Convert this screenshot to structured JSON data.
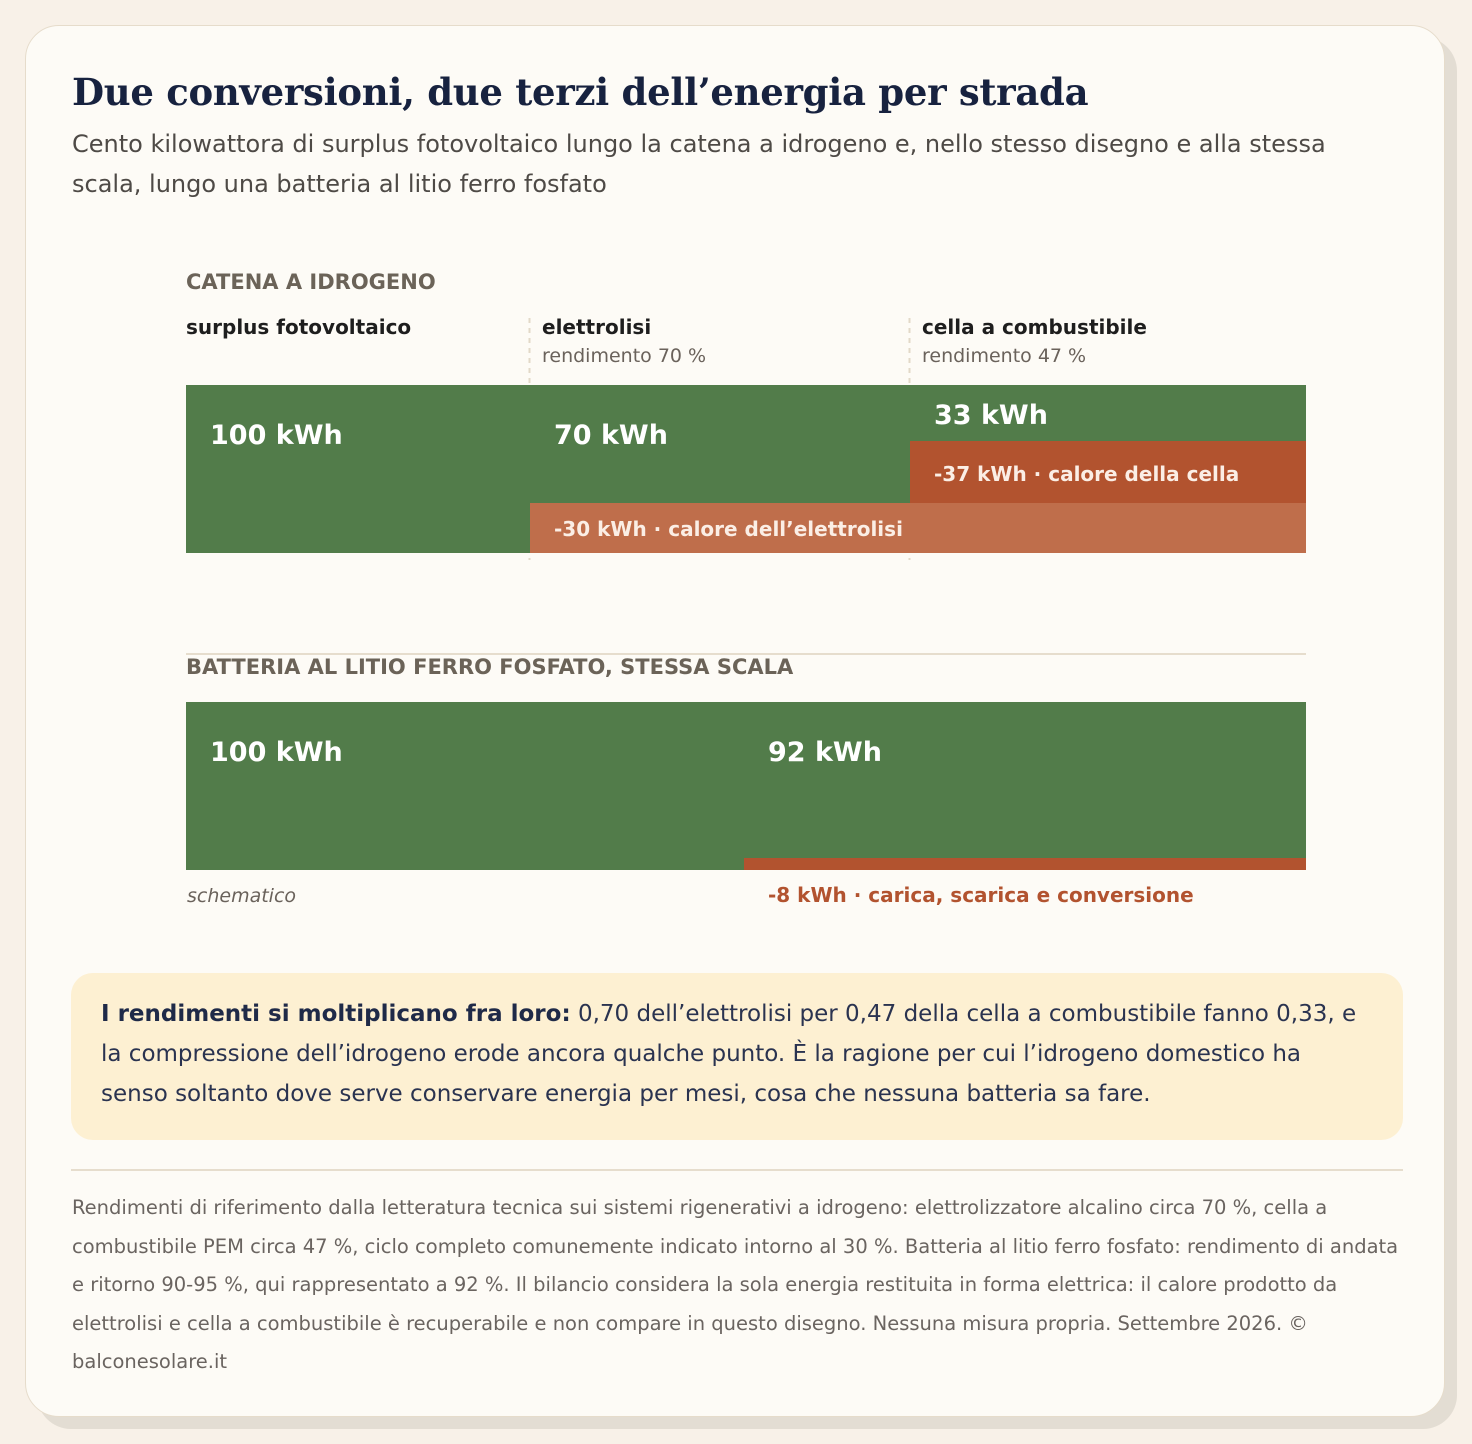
{
  "header": {
    "title": "Due conversioni, due terzi dell’energia per strada",
    "subtitle": "Cento kilowattora di surplus fotovoltaico lungo la catena a idrogeno e, nello stesso disegno e alla stessa scala, lungo una batteria al litio ferro fosfato"
  },
  "chart_data": {
    "type": "bar",
    "colors": {
      "energy": "#527c4a",
      "loss_electrolysis": "#bf6e4b",
      "loss_cell": "#b2532f",
      "loss_battery": "#b2532f"
    },
    "sections": [
      {
        "title": "CATENA A IDROGENO",
        "stages": [
          {
            "name": "surplus fotovoltaico",
            "note": "",
            "value": 100,
            "label": "100 kWh"
          },
          {
            "name": "elettrolisi",
            "note": "rendimento 70 %",
            "value": 70,
            "label": "70 kWh",
            "loss": 30,
            "loss_label": "-30 kWh · calore dell’elettrolisi"
          },
          {
            "name": "cella a combustibile",
            "note": "rendimento 47 %",
            "value": 33,
            "label": "33 kWh",
            "loss": 37,
            "loss_label": "-37 kWh · calore della cella"
          }
        ]
      },
      {
        "title": "BATTERIA AL LITIO FERRO FOSFATO, STESSA SCALA",
        "stages": [
          {
            "name": "",
            "note": "",
            "value": 100,
            "label": "100 kWh"
          },
          {
            "name": "",
            "note": "",
            "value": 92,
            "label": "92 kWh",
            "loss": 8,
            "loss_label": "-8 kWh · carica, scarica e conversione"
          }
        ]
      }
    ],
    "scale_note": "schematico",
    "unit": "kWh"
  },
  "callout": {
    "lead": "I rendimenti si moltiplicano fra loro:",
    "text": " 0,70 dell’elettrolisi per 0,47 della cella a combustibile fanno 0,33, e la compressione dell’idrogeno erode ancora qualche punto. È la ragione per cui l’idrogeno domestico ha senso soltanto dove serve conservare energia per mesi, cosa che nessuna batteria sa fare."
  },
  "footnote": "Rendimenti di riferimento dalla letteratura tecnica sui sistemi rigenerativi a idrogeno: elettrolizzatore alcalino circa 70 %, cella a combustibile PEM circa 47 %, ciclo completo comunemente indicato intorno al 30 %. Batteria al litio ferro fosfato: rendimento di andata e ritorno 90-95 %, qui rappresentato a 92 %. Il bilancio considera la sola energia restituita in forma elettrica: il calore prodotto da elettrolisi e cella a combustibile è recuperabile e non compare in questo disegno. Nessuna misura propria. Settembre 2026. © balconesolare.it"
}
